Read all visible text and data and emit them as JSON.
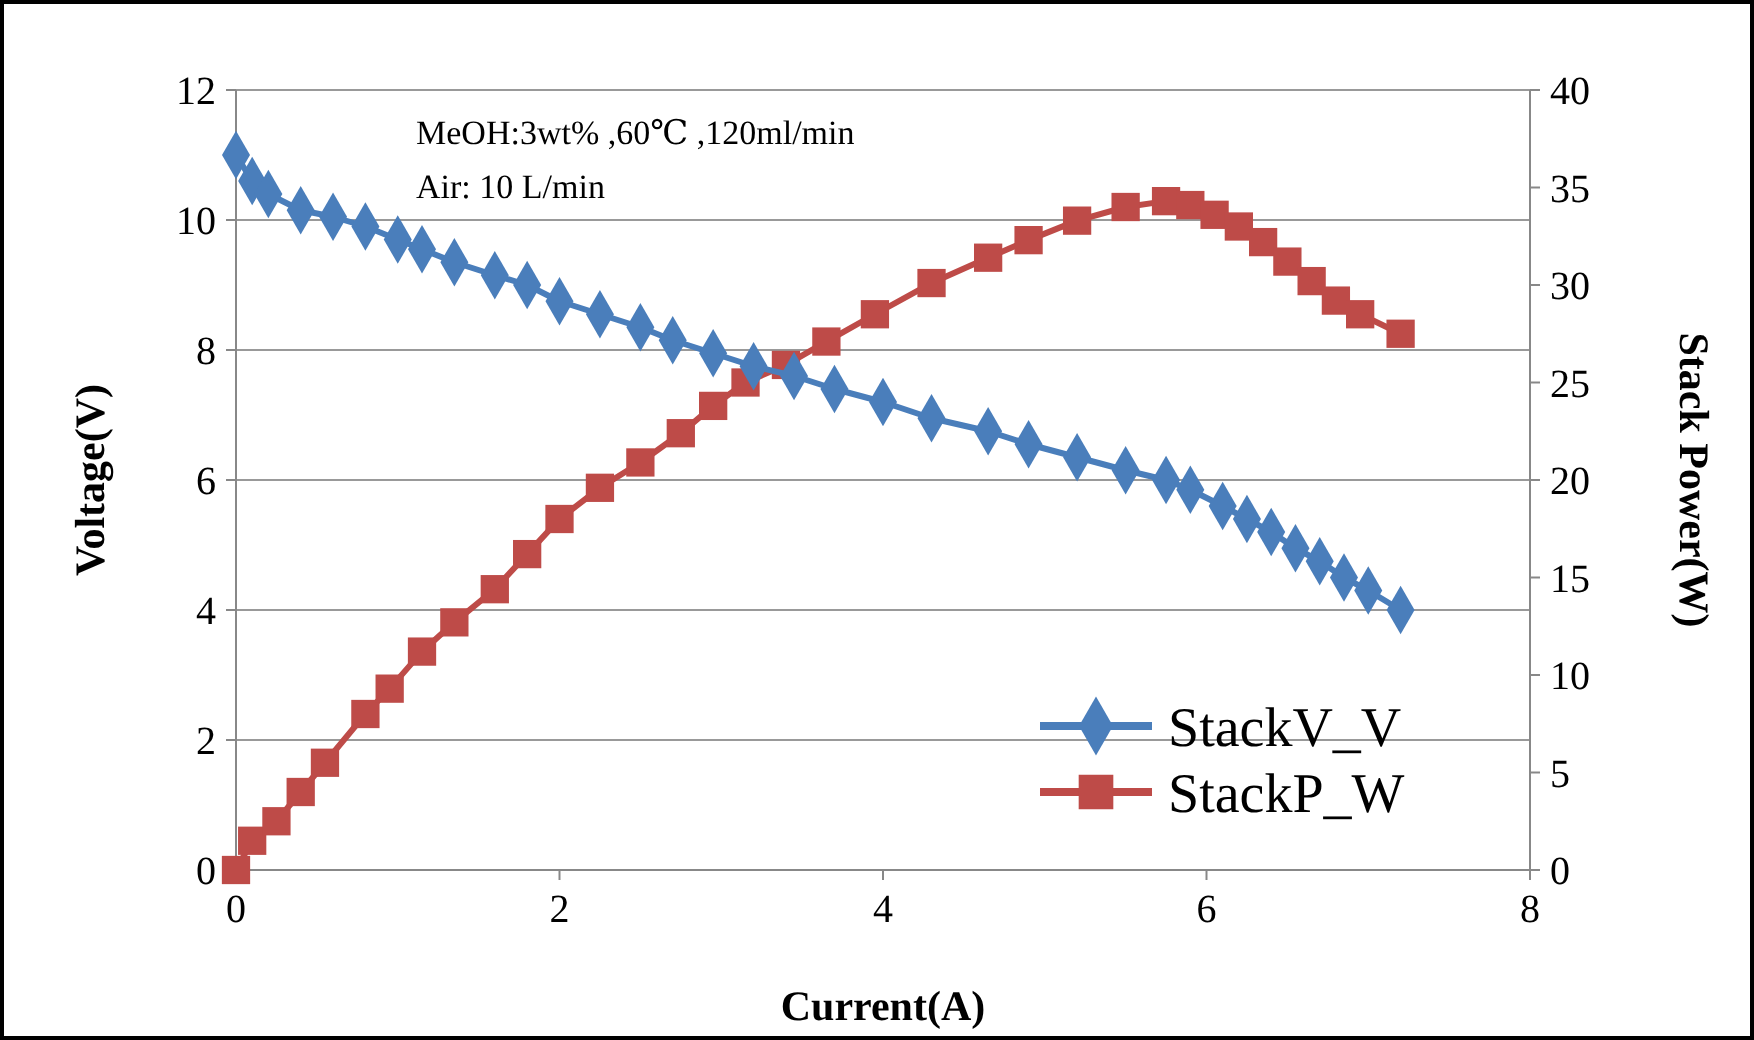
{
  "chart_data": {
    "type": "line",
    "xlabel": "Current(A)",
    "ylabel": "Voltage(V)",
    "y2label": "Stack Power(W)",
    "annotations": [
      "MeOH:3wt% ,60℃ ,120ml/min",
      "Air: 10 L/min"
    ],
    "xlim": [
      0,
      8
    ],
    "xticks": [
      0,
      2,
      4,
      6,
      8
    ],
    "ylim": [
      0,
      12
    ],
    "yticks": [
      0,
      2,
      4,
      6,
      8,
      10,
      12
    ],
    "y2lim": [
      0,
      40
    ],
    "y2ticks": [
      0,
      5,
      10,
      15,
      20,
      25,
      30,
      35,
      40
    ],
    "grid": "y",
    "legend": "bottom right",
    "series": [
      {
        "name": "StackV_V",
        "color": "#4a7ebb",
        "marker": "diamond",
        "x": [
          0,
          0.1,
          0.2,
          0.4,
          0.6,
          0.8,
          1.0,
          1.15,
          1.35,
          1.6,
          1.8,
          2.0,
          2.25,
          2.5,
          2.7,
          2.95,
          3.2,
          3.45,
          3.7,
          4.0,
          4.3,
          4.65,
          4.9,
          5.2,
          5.5,
          5.75,
          5.9,
          6.1,
          6.25,
          6.4,
          6.55,
          6.7,
          6.85,
          7.0,
          7.2
        ],
        "values": [
          11.0,
          10.6,
          10.4,
          10.15,
          10.05,
          9.9,
          9.7,
          9.55,
          9.35,
          9.15,
          9.0,
          8.75,
          8.55,
          8.35,
          8.15,
          7.95,
          7.75,
          7.6,
          7.4,
          7.2,
          6.95,
          6.75,
          6.55,
          6.35,
          6.15,
          6.0,
          5.85,
          5.6,
          5.4,
          5.2,
          4.95,
          4.75,
          4.5,
          4.3,
          4.0
        ]
      },
      {
        "name": "StackP_W",
        "color": "#be4b48",
        "marker": "square",
        "axis": "y2",
        "x": [
          0,
          0.1,
          0.25,
          0.4,
          0.55,
          0.8,
          0.95,
          1.15,
          1.35,
          1.6,
          1.8,
          2.0,
          2.25,
          2.5,
          2.75,
          2.95,
          3.15,
          3.4,
          3.65,
          3.95,
          4.3,
          4.65,
          4.9,
          5.2,
          5.5,
          5.75,
          5.9,
          6.05,
          6.2,
          6.35,
          6.5,
          6.65,
          6.8,
          6.95,
          7.2
        ],
        "values": [
          0,
          1.5,
          2.5,
          4.0,
          5.5,
          8,
          9.3,
          11.2,
          12.7,
          14.4,
          16.2,
          18,
          19.6,
          20.9,
          22.4,
          23.8,
          25.0,
          25.9,
          27.1,
          28.5,
          30.1,
          31.4,
          32.3,
          33.3,
          34.0,
          34.3,
          34.1,
          33.6,
          33.0,
          32.2,
          31.2,
          30.2,
          29.2,
          28.5,
          27.5
        ]
      }
    ]
  }
}
